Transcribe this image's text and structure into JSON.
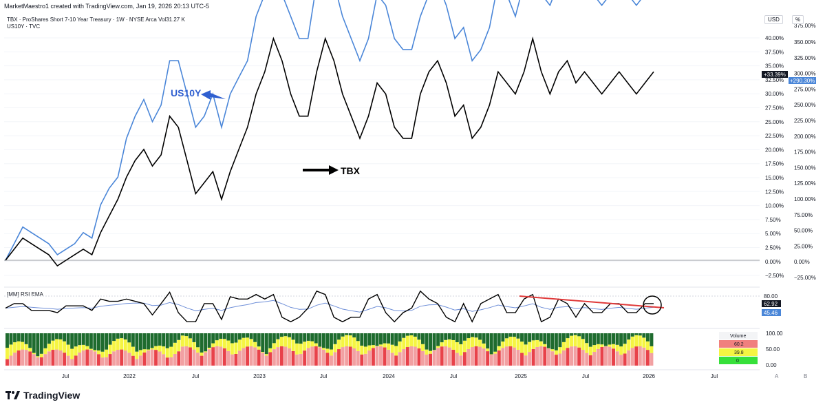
{
  "header": {
    "credit": "MarketMaestro1 created with TradingView.com, Jan 19, 2026 20:13 UTC-5",
    "symbol_line": "TBX · ProShares Short 7-10 Year Treasury · 1W · NYSE Arca   Vol31.27 K",
    "compare_line": "US10Y · TVC",
    "currency_tag": "USD",
    "percent_tag": "%"
  },
  "brand": {
    "name": "TradingView"
  },
  "colors": {
    "tbx": "#000000",
    "us10y": "#4a86d8",
    "trendline": "#e03a3a",
    "rsi": "#000000",
    "ema": "#6f8fd8",
    "grid": "#f0f3fa"
  },
  "chart_data": [
    {
      "type": "line",
      "x_labels": [
        "Jul",
        "2022",
        "Jul",
        "2023",
        "Jul",
        "2024",
        "Jul",
        "2025",
        "Jul",
        "2026",
        "Jul"
      ],
      "series": [
        {
          "name": "US10Y",
          "unit": "%",
          "values": [
            0,
            3,
            6,
            5,
            4,
            3,
            1,
            2,
            3,
            5,
            4,
            10,
            13,
            15,
            22,
            26,
            29,
            25,
            28,
            36,
            36,
            30,
            24,
            26,
            30,
            24,
            30,
            33,
            36,
            44,
            48,
            52,
            48,
            44,
            40,
            40,
            50,
            56,
            50,
            44,
            40,
            36,
            40,
            48,
            46,
            40,
            38,
            38,
            44,
            48,
            50,
            46,
            40,
            42,
            36,
            38,
            42,
            50,
            48,
            44,
            50,
            56,
            48,
            46,
            50,
            52,
            48,
            50,
            48,
            46,
            48,
            50,
            48,
            46,
            48,
            50
          ]
        },
        {
          "name": "TBX",
          "unit": "%",
          "values": [
            0,
            2,
            4,
            3,
            2,
            1,
            -1,
            0,
            1,
            2,
            1,
            5,
            8,
            11,
            15,
            18,
            20,
            17,
            19,
            26,
            24,
            18,
            12,
            14,
            16,
            11,
            16,
            20,
            24,
            30,
            34,
            40,
            36,
            30,
            26,
            26,
            34,
            40,
            36,
            30,
            26,
            22,
            26,
            32,
            30,
            24,
            22,
            22,
            30,
            34,
            36,
            32,
            26,
            28,
            22,
            24,
            28,
            34,
            32,
            30,
            34,
            40,
            34,
            30,
            34,
            36,
            32,
            34,
            32,
            30,
            32,
            34,
            32,
            30,
            32,
            34
          ]
        }
      ],
      "left_axis_ticks": [
        "40.00%",
        "37.50%",
        "35.00%",
        "32.50%",
        "30.00%",
        "27.50%",
        "25.00%",
        "22.50%",
        "20.00%",
        "17.50%",
        "15.00%",
        "12.50%",
        "10.00%",
        "7.50%",
        "5.00%",
        "2.50%",
        "0.00%",
        "−2.50%"
      ],
      "right_axis_ticks": [
        "350.00%",
        "325.00%",
        "300.00%",
        "275.00%",
        "250.00%",
        "225.00%",
        "200.00%",
        "175.00%",
        "150.00%",
        "125.00%",
        "100.00%",
        "75.00%",
        "50.00%",
        "25.00%",
        "0.00%",
        "−25.00%"
      ],
      "right_axis_top_partial": "375.00%",
      "tbx_last_label": "+33.39%",
      "us10y_last_label": "+290.30%",
      "annotations": [
        {
          "text": "US10Y",
          "color": "#2f5fd0"
        },
        {
          "text": "TBX",
          "color": "#000000"
        }
      ]
    },
    {
      "type": "line",
      "title": "[MM] RSI EMA",
      "ylim": [
        0,
        100
      ],
      "axis_ticks": [
        "80.00"
      ],
      "rsi_last": "62.92",
      "ema_last": "45.46"
    },
    {
      "type": "bar",
      "axis_ticks": [
        "100.00",
        "50.00",
        "0.00"
      ],
      "legend_title": "Volume",
      "legend_values": [
        "60.2",
        "39.8",
        "0"
      ],
      "legend_colors": [
        "#f0807e",
        "#f5f542",
        "#36e03a"
      ]
    }
  ],
  "footer_axis": {
    "a": "A",
    "b": "B"
  }
}
